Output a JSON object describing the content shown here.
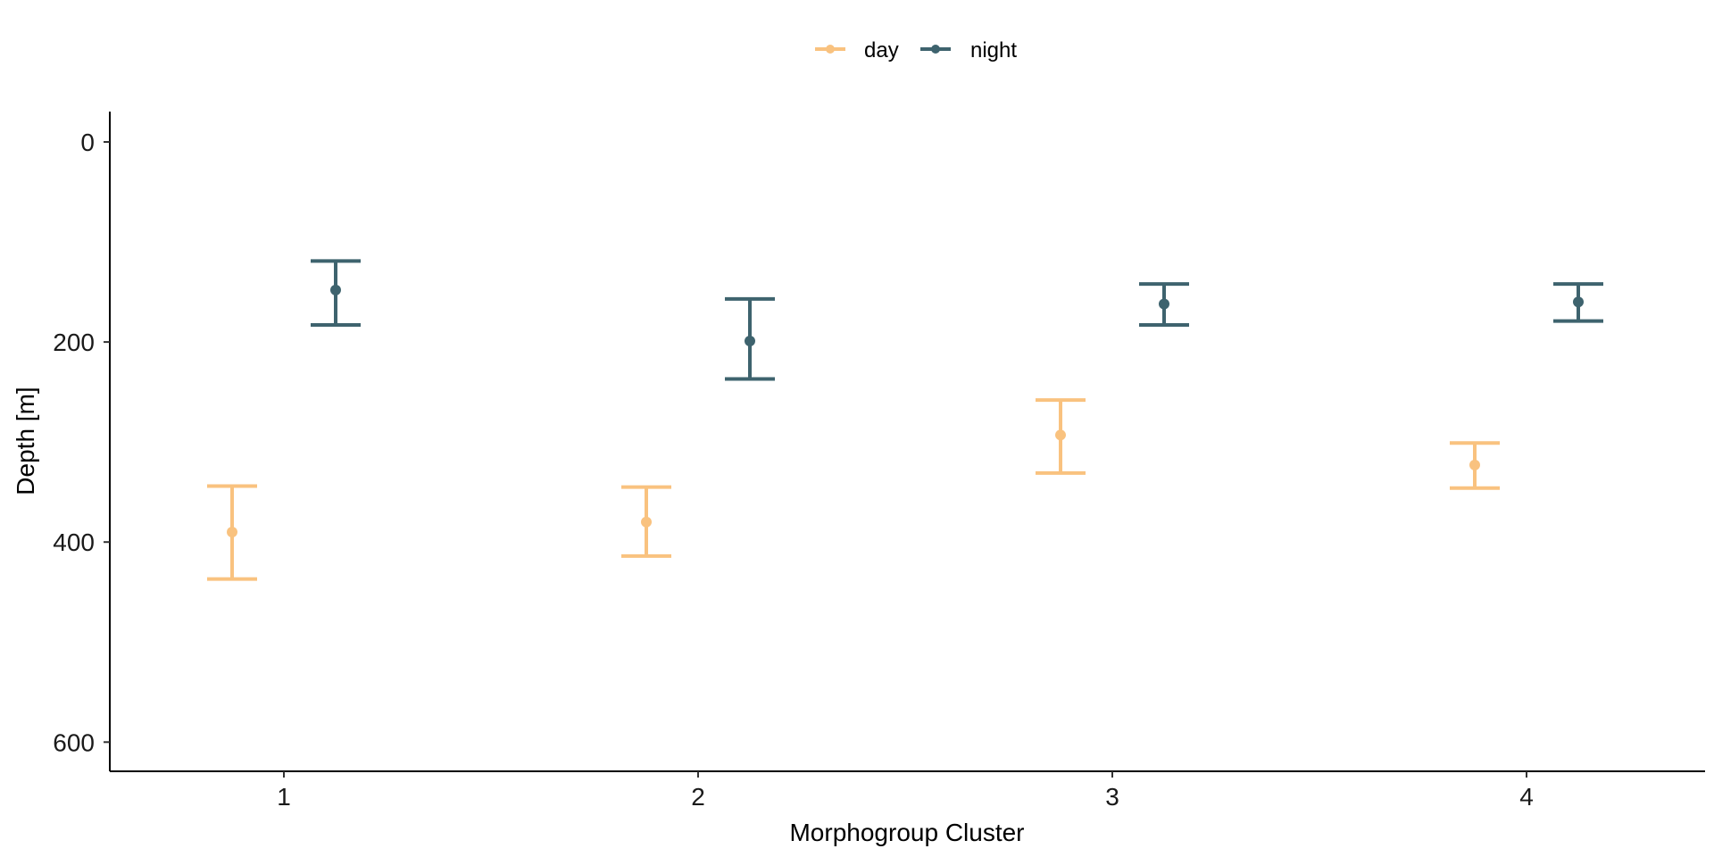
{
  "chart_data": {
    "type": "errorbar",
    "xlabel": "Morphogroup Cluster",
    "ylabel": "Depth [m]",
    "categories": [
      "1",
      "2",
      "3",
      "4"
    ],
    "y_ticks": [
      "0",
      "200",
      "400",
      "600"
    ],
    "y_tick_values": [
      0,
      200,
      400,
      600
    ],
    "ylim": [
      -30,
      630
    ],
    "y_reversed": true,
    "legend_position": "top",
    "series": [
      {
        "name": "day",
        "color": "#F9C27F",
        "points": [
          {
            "category": "1",
            "mean": 390,
            "lower": 344,
            "upper": 437
          },
          {
            "category": "2",
            "mean": 380,
            "lower": 345,
            "upper": 414
          },
          {
            "category": "3",
            "mean": 293,
            "lower": 258,
            "upper": 331
          },
          {
            "category": "4",
            "mean": 323,
            "lower": 301,
            "upper": 346
          }
        ]
      },
      {
        "name": "night",
        "color": "#3E636E",
        "points": [
          {
            "category": "1",
            "mean": 148,
            "lower": 119,
            "upper": 183
          },
          {
            "category": "2",
            "mean": 199,
            "lower": 157,
            "upper": 237
          },
          {
            "category": "3",
            "mean": 162,
            "lower": 142,
            "upper": 183
          },
          {
            "category": "4",
            "mean": 160,
            "lower": 142,
            "upper": 179
          }
        ]
      }
    ]
  }
}
